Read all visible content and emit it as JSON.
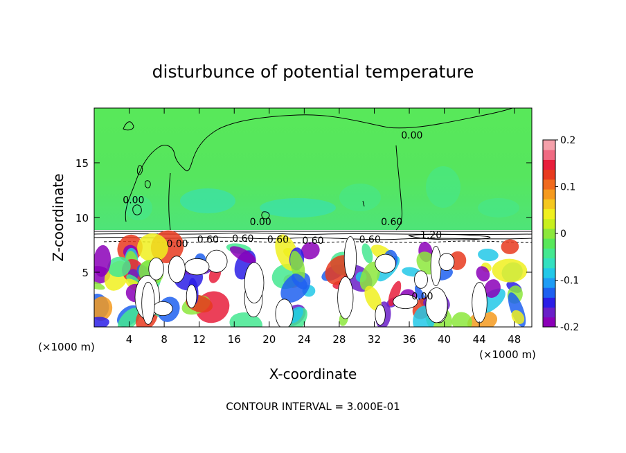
{
  "chart_data": {
    "type": "heatmap",
    "title": "disturbunce of potential temperature",
    "xlabel": "X-coordinate",
    "ylabel": "Z-coordinate",
    "x_unit": "(×1000 m)",
    "z_unit": "(×1000 m)",
    "xlim": [
      0,
      50
    ],
    "ylim": [
      0,
      20
    ],
    "x_ticks": [
      4,
      8,
      12,
      16,
      20,
      24,
      28,
      32,
      36,
      40,
      44,
      48
    ],
    "y_ticks": [
      5,
      10,
      15
    ],
    "colorbar": {
      "range": [
        -0.2,
        0.2
      ],
      "ticks": [
        {
          "value": 0.2,
          "label": "0.2"
        },
        {
          "value": 0.1,
          "label": "0.1"
        },
        {
          "value": 0,
          "label": "0"
        },
        {
          "value": -0.1,
          "label": "-0.1"
        },
        {
          "value": -0.2,
          "label": "-0.2"
        }
      ],
      "colors": [
        "#8b00b8",
        "#6a1fc8",
        "#2b1ee6",
        "#1e60f0",
        "#1e9cf5",
        "#22c8e8",
        "#33e0c0",
        "#44e890",
        "#58e85a",
        "#8ce83c",
        "#c8f01e",
        "#f0f01e",
        "#f5c81e",
        "#f59a1e",
        "#f06a1e",
        "#e83a1e",
        "#e81e3c",
        "#f06a82",
        "#f5a0aa"
      ]
    },
    "contour_labels": [
      {
        "x": 36.3,
        "z": 17.2,
        "text": "0.00"
      },
      {
        "x": 19.0,
        "z": 9.3,
        "text": "0.00"
      },
      {
        "x": 34.0,
        "z": 9.3,
        "text": "0.60"
      },
      {
        "x": 13.0,
        "z": 7.7,
        "text": "0.60"
      },
      {
        "x": 17.0,
        "z": 7.8,
        "text": "0.60"
      },
      {
        "x": 21.0,
        "z": 7.7,
        "text": "0.60"
      },
      {
        "x": 25.0,
        "z": 7.6,
        "text": "0.60"
      },
      {
        "x": 31.5,
        "z": 7.7,
        "text": "0.60"
      },
      {
        "x": 38.5,
        "z": 8.1,
        "text": "1.20"
      },
      {
        "x": 9.5,
        "z": 7.3,
        "text": "0.00"
      },
      {
        "x": 4.5,
        "z": 11.3,
        "text": "0.00"
      },
      {
        "x": 37.5,
        "z": 2.5,
        "text": "0.00"
      }
    ],
    "contour_interval_text": "CONTOUR INTERVAL = 3.000E-01"
  }
}
